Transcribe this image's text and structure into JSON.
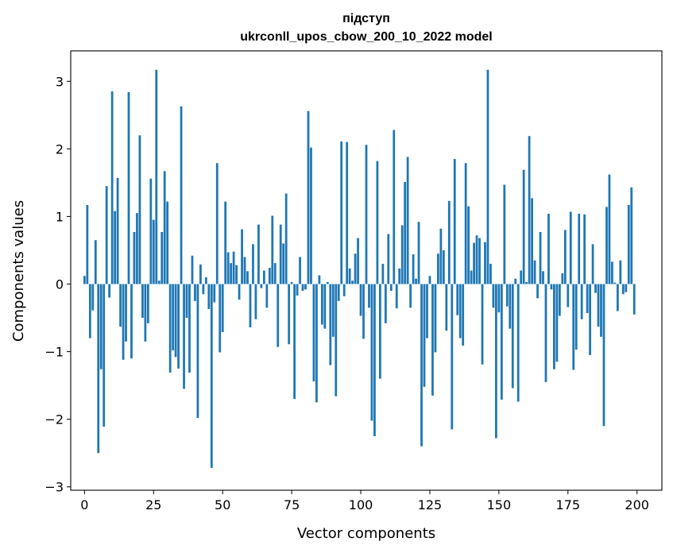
{
  "chart_data": {
    "type": "bar",
    "title": "підступ",
    "subtitle": "ukrconll_upos_cbow_200_10_2022 model",
    "xlabel": "Vector components",
    "ylabel": "Components values",
    "xlim": [
      -5,
      209
    ],
    "ylim": [
      -3.05,
      3.45
    ],
    "xticks": [
      0,
      25,
      50,
      75,
      100,
      125,
      150,
      175,
      200
    ],
    "yticks": [
      -3,
      -2,
      -1,
      0,
      1,
      2,
      3
    ],
    "ytick_labels": [
      "−3",
      "−2",
      "−1",
      "0",
      "1",
      "2",
      "3"
    ],
    "grid": false,
    "bar_color": "#1f77b4",
    "values": [
      0.12,
      1.17,
      -0.8,
      -0.39,
      0.65,
      -2.5,
      -1.26,
      -2.11,
      1.45,
      -0.2,
      2.85,
      1.08,
      1.57,
      -0.63,
      -1.12,
      -0.85,
      2.84,
      -1.1,
      0.77,
      1.05,
      2.2,
      -0.5,
      -0.85,
      -0.58,
      1.56,
      0.95,
      3.17,
      0.05,
      0.77,
      1.67,
      1.22,
      -1.31,
      -0.98,
      -1.08,
      -1.25,
      2.63,
      -1.55,
      -0.5,
      -1.31,
      0.42,
      -0.25,
      -1.98,
      0.29,
      -0.15,
      0.1,
      -0.37,
      -2.72,
      -0.27,
      1.79,
      -1.01,
      -0.71,
      1.22,
      0.47,
      0.31,
      0.48,
      0.28,
      -0.23,
      0.81,
      0.4,
      0.19,
      -0.64,
      0.59,
      -0.52,
      0.88,
      -0.06,
      0.2,
      -0.35,
      0.24,
      1.01,
      0.31,
      -0.93,
      0.88,
      0.6,
      1.34,
      -0.89,
      0.03,
      -1.7,
      -0.17,
      0.4,
      -0.1,
      -0.08,
      2.56,
      2.02,
      -1.44,
      -1.75,
      0.13,
      -0.6,
      -0.66,
      0.03,
      -1.2,
      -0.78,
      -1.66,
      -0.25,
      2.11,
      -0.18,
      2.1,
      0.23,
      0.05,
      0.45,
      0.68,
      -0.47,
      -0.81,
      2.06,
      -0.35,
      -2.02,
      -2.25,
      1.82,
      -1.4,
      0.3,
      -0.58,
      0.74,
      -0.1,
      2.28,
      -0.36,
      0.23,
      0.87,
      1.51,
      1.88,
      -0.35,
      0.44,
      0.08,
      0.92,
      -2.4,
      -1.52,
      -0.8,
      0.12,
      -1.65,
      -1.01,
      0.45,
      0.82,
      0.5,
      -0.69,
      1.23,
      -2.15,
      1.85,
      -0.46,
      -0.8,
      -0.91,
      1.79,
      1.15,
      0.2,
      0.61,
      0.72,
      0.68,
      -1.19,
      0.62,
      3.17,
      0.3,
      -0.35,
      -2.28,
      -0.42,
      -1.71,
      1.47,
      -0.33,
      -0.66,
      -1.54,
      0.08,
      -1.74,
      0.2,
      1.69,
      0.03,
      2.19,
      1.27,
      0.35,
      -0.21,
      0.77,
      0.19,
      -1.45,
      1.04,
      -0.08,
      -1.26,
      -1.15,
      -0.47,
      0.16,
      0.8,
      -0.34,
      1.07,
      -1.27,
      -0.97,
      1.04,
      -0.52,
      1.03,
      -0.43,
      -1.05,
      0.59,
      -0.13,
      -0.63,
      -0.78,
      -2.1,
      1.14,
      1.62,
      0.33,
      0.02,
      -0.4,
      0.35,
      -0.15,
      -0.12,
      1.17,
      1.43,
      -0.45
    ]
  }
}
